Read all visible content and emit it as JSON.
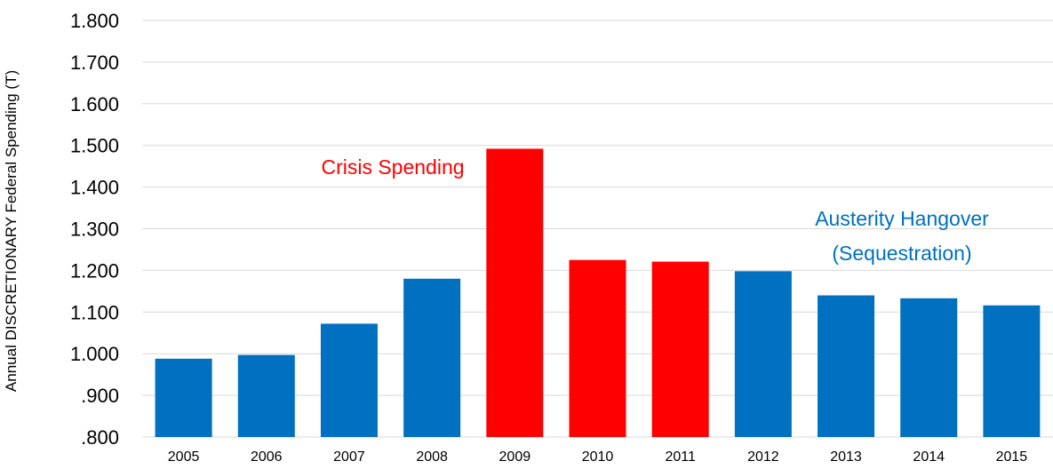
{
  "chart_data": {
    "type": "bar",
    "title": "",
    "xlabel": "",
    "ylabel": "Annual DISCRETIONARY Federal Spending (T)",
    "ylim": [
      0.8,
      1.8
    ],
    "grid": true,
    "yticks": [
      {
        "value": 1.8,
        "label": "1.800"
      },
      {
        "value": 1.7,
        "label": "1.700"
      },
      {
        "value": 1.6,
        "label": "1.600"
      },
      {
        "value": 1.5,
        "label": "1.500"
      },
      {
        "value": 1.4,
        "label": "1.400"
      },
      {
        "value": 1.3,
        "label": "1.300"
      },
      {
        "value": 1.2,
        "label": "1.200"
      },
      {
        "value": 1.1,
        "label": "1.100"
      },
      {
        "value": 1.0,
        "label": "1.000"
      },
      {
        "value": 0.9,
        "label": ".900"
      },
      {
        "value": 0.8,
        "label": ".800"
      }
    ],
    "categories": [
      "2005",
      "2006",
      "2007",
      "2008",
      "2009",
      "2010",
      "2011",
      "2012",
      "2013",
      "2014",
      "2015"
    ],
    "values": [
      0.988,
      0.997,
      1.072,
      1.18,
      1.492,
      1.225,
      1.221,
      1.198,
      1.14,
      1.133,
      1.116
    ],
    "bar_colors": [
      "#0070C0",
      "#0070C0",
      "#0070C0",
      "#0070C0",
      "#FF0000",
      "#FF0000",
      "#FF0000",
      "#0070C0",
      "#0070C0",
      "#0070C0",
      "#0070C0"
    ],
    "annotations": [
      {
        "text": "Crisis Spending",
        "color": "#FF0000"
      },
      {
        "text": "Austerity Hangover",
        "color": "#0070C0"
      },
      {
        "text": "(Sequestration)",
        "color": "#0070C0"
      }
    ]
  }
}
